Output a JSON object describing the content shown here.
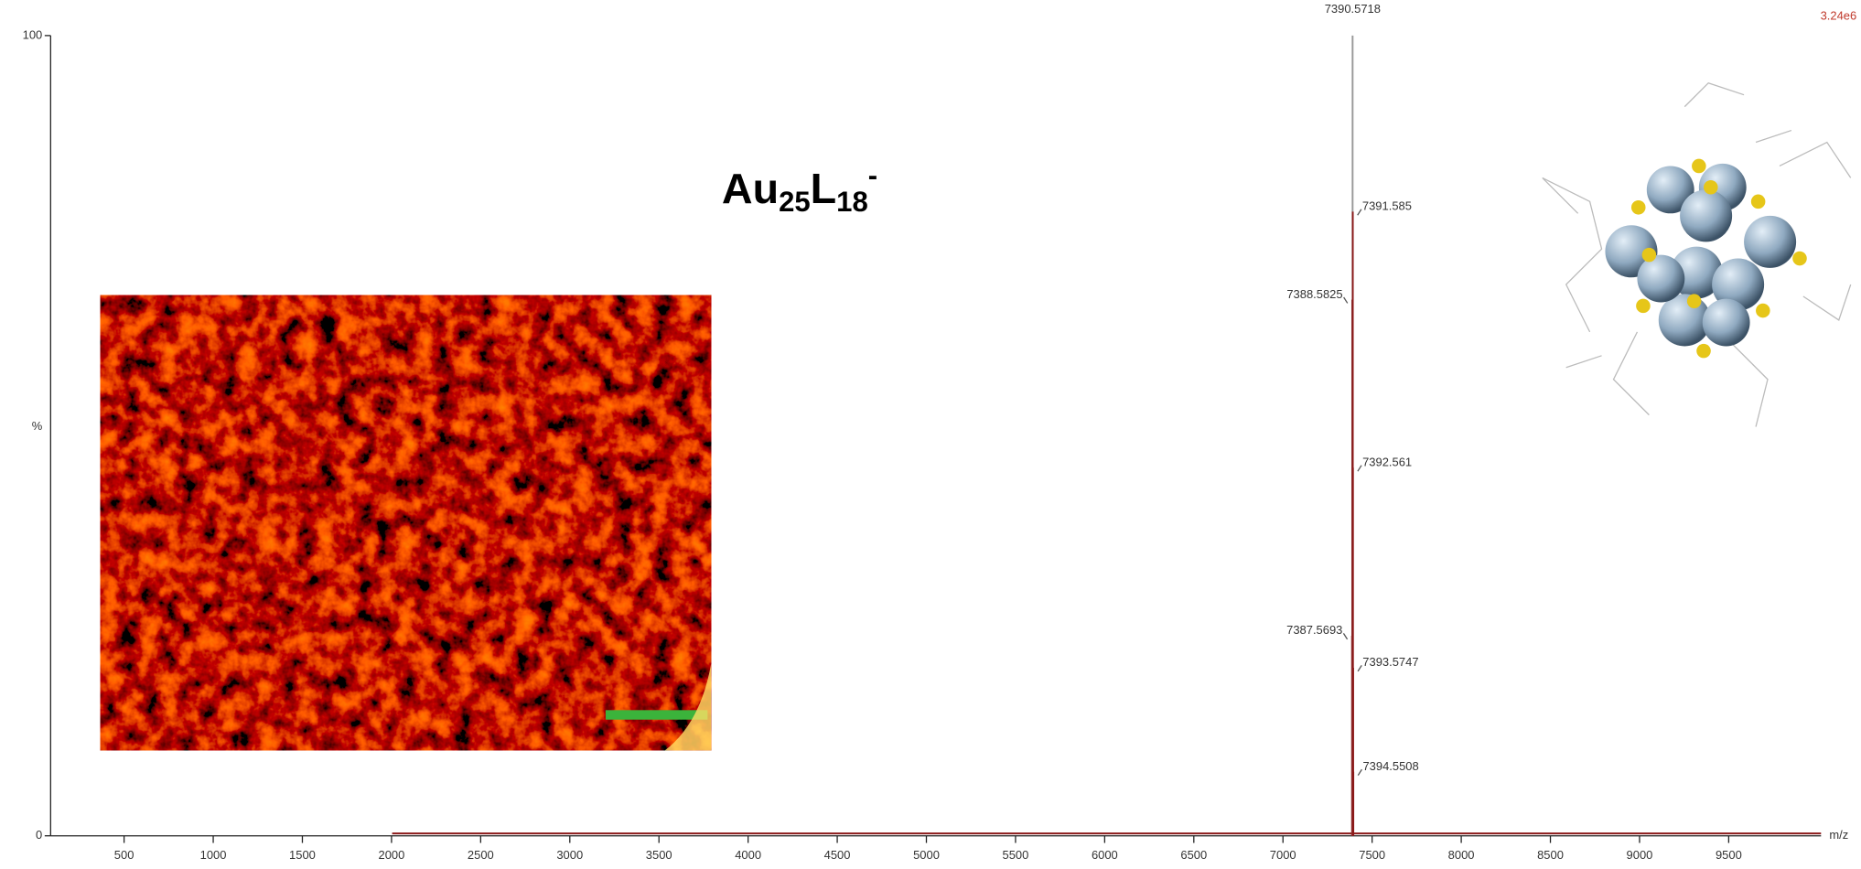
{
  "chart_data": {
    "type": "spectrum",
    "annotation": [
      "Au",
      "25",
      "L",
      "18",
      "-"
    ],
    "intensity_label": "3.24e6",
    "xlabel": "m/z",
    "ylabel": "%",
    "series": [
      {
        "color": "#8b1a1a",
        "x": [
          7387.5693,
          7388.5825,
          7390.5718,
          7391.585,
          7392.561,
          7393.5747,
          7394.5508
        ],
        "values": [
          25,
          67,
          100,
          78,
          46,
          21,
          8
        ]
      }
    ],
    "xlim": [
      88,
      10018
    ],
    "xticks": [
      500,
      1000,
      1500,
      2000,
      2500,
      3000,
      3500,
      4000,
      4500,
      5000,
      5500,
      6000,
      6500,
      7000,
      7500,
      8000,
      8500,
      9000,
      9500
    ],
    "ylim": [
      0,
      100
    ],
    "yticks": [
      0,
      100
    ]
  }
}
